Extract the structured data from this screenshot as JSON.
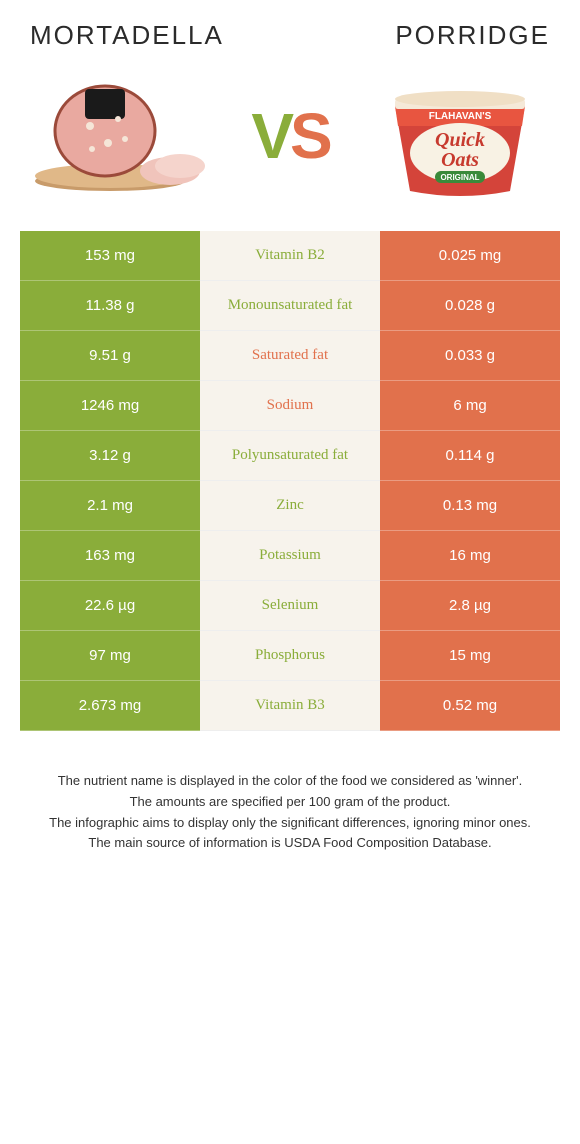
{
  "header": {
    "left_title": "MORTADELLA",
    "right_title": "PORRIDGE",
    "vs_left": "V",
    "vs_right": "S"
  },
  "colors": {
    "left": "#8aad3a",
    "right": "#e1714c",
    "mid_bg": "#f7f3ec",
    "page_bg": "#ffffff",
    "text_dark": "#2b2b2b"
  },
  "rows": [
    {
      "left": "153 mg",
      "label": "Vitamin B2",
      "right": "0.025 mg",
      "winner": "left"
    },
    {
      "left": "11.38 g",
      "label": "Monounsaturated fat",
      "right": "0.028 g",
      "winner": "left"
    },
    {
      "left": "9.51 g",
      "label": "Saturated fat",
      "right": "0.033 g",
      "winner": "right"
    },
    {
      "left": "1246 mg",
      "label": "Sodium",
      "right": "6 mg",
      "winner": "right"
    },
    {
      "left": "3.12 g",
      "label": "Polyunsaturated fat",
      "right": "0.114 g",
      "winner": "left"
    },
    {
      "left": "2.1 mg",
      "label": "Zinc",
      "right": "0.13 mg",
      "winner": "left"
    },
    {
      "left": "163 mg",
      "label": "Potassium",
      "right": "16 mg",
      "winner": "left"
    },
    {
      "left": "22.6 µg",
      "label": "Selenium",
      "right": "2.8 µg",
      "winner": "left"
    },
    {
      "left": "97 mg",
      "label": "Phosphorus",
      "right": "15 mg",
      "winner": "left"
    },
    {
      "left": "2.673 mg",
      "label": "Vitamin B3",
      "right": "0.52 mg",
      "winner": "left"
    }
  ],
  "footnotes": [
    "The nutrient name is displayed in the color of the food we considered as 'winner'.",
    "The amounts are specified per 100 gram of the product.",
    "The infographic aims to display only the significant differences, ignoring minor ones.",
    "The main source of information is USDA Food Composition Database."
  ],
  "porridge_label": {
    "brand": "FLAHAVAN'S",
    "line1": "Quick",
    "line2": "Oats",
    "tag": "ORIGINAL"
  }
}
